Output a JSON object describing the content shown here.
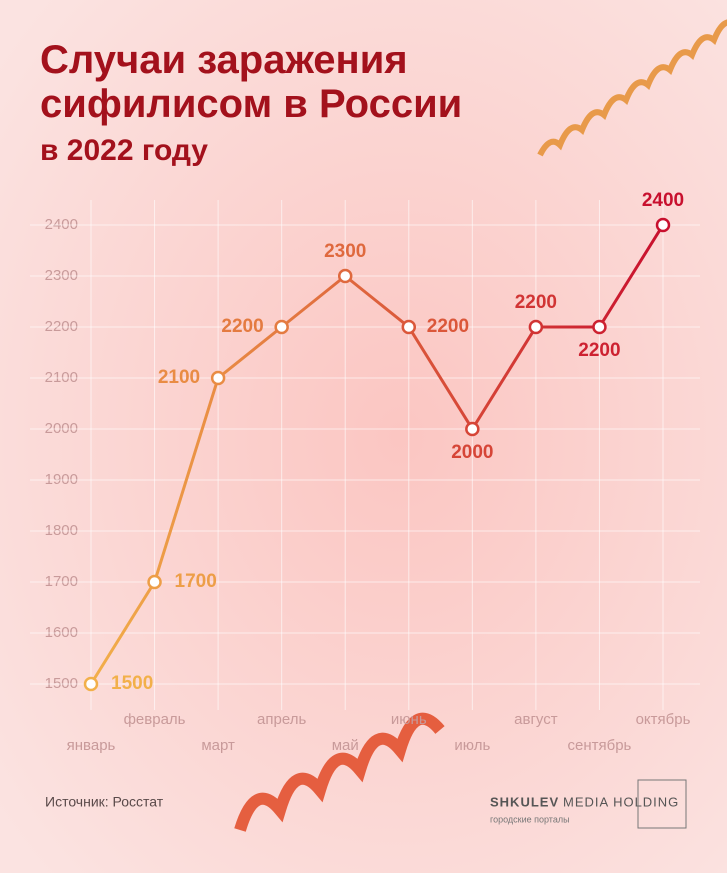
{
  "chart_data": {
    "type": "line",
    "title": "Случаи заражения\nсифилисом в России",
    "subtitle": "в 2022 году",
    "categories": [
      "январь",
      "февраль",
      "март",
      "апрель",
      "май",
      "июнь",
      "июль",
      "август",
      "сентябрь",
      "октябрь"
    ],
    "series": [
      {
        "name": "Случаи",
        "color": [
          "#f2b04a",
          "#c8102e"
        ],
        "values": [
          1500,
          1700,
          2100,
          2200,
          2300,
          2200,
          2000,
          2200,
          2200,
          2400
        ]
      }
    ],
    "ylim": [
      1500,
      2400
    ],
    "yticks": [
      1500,
      1600,
      1700,
      1800,
      1900,
      2000,
      2100,
      2200,
      2300,
      2400
    ],
    "grid": true
  },
  "source": "Источник: Росстат",
  "brand": {
    "name": "SHKULEV",
    "suffix": "MEDIA HOLDING",
    "tagline": "городские порталы"
  }
}
